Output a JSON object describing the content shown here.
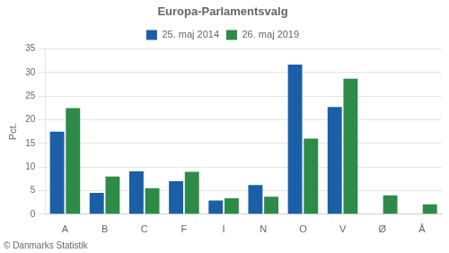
{
  "chart_data": {
    "type": "bar",
    "title": "Europa-Parlamentsvalg",
    "categories": [
      "A",
      "B",
      "C",
      "F",
      "I",
      "N",
      "O",
      "V",
      "Ø",
      "Å"
    ],
    "series": [
      {
        "name": "25. maj 2014",
        "color": "#1a5fa8",
        "values": [
          17.5,
          4.5,
          9.1,
          7.0,
          2.9,
          6.2,
          31.7,
          22.7,
          0.0,
          0.0
        ]
      },
      {
        "name": "26. maj 2019",
        "color": "#2e8b47",
        "values": [
          22.5,
          8.0,
          5.5,
          9.0,
          3.4,
          3.7,
          16.0,
          28.7,
          4.0,
          2.1
        ]
      }
    ],
    "ylabel": "Pct.",
    "ylim": [
      0,
      35
    ],
    "yticks": [
      0,
      5,
      10,
      15,
      20,
      25,
      30,
      35
    ],
    "grid": true,
    "legend": "top",
    "annotations": [
      "© Danmarks Statistik"
    ]
  }
}
